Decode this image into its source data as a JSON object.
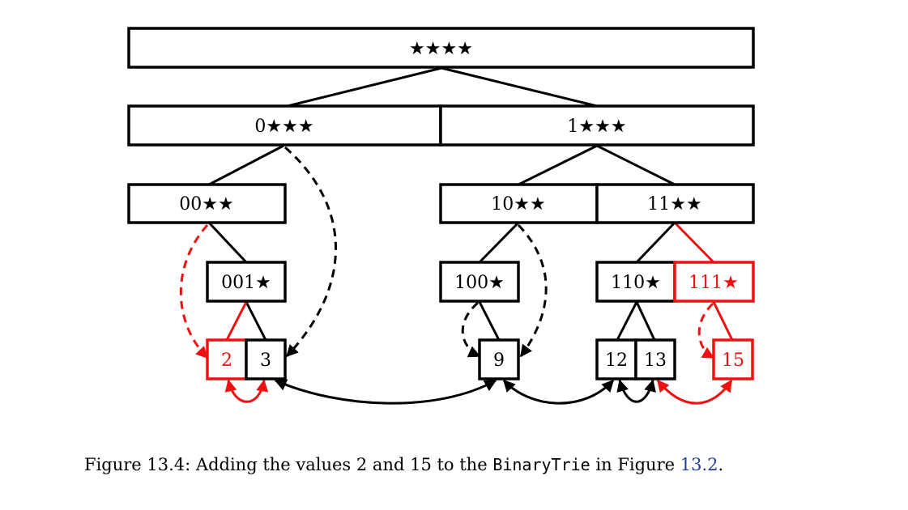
{
  "colors": {
    "black": "#000000",
    "red": "#ee1111",
    "link": "#1f3f9f"
  },
  "nodes": {
    "root": "★★★★",
    "n0": "0★★★",
    "n1": "1★★★",
    "n00": "00★★",
    "n10": "10★★",
    "n11": "11★★",
    "n001": "001★",
    "n100": "100★",
    "n110": "110★",
    "n111": "111★"
  },
  "leaves": {
    "l2": "2",
    "l3": "3",
    "l9": "9",
    "l12": "12",
    "l13": "13",
    "l15": "15"
  },
  "caption": {
    "prefix": "Figure 13.4: Adding the values 2 and 15 to the ",
    "code": "BinaryTrie",
    "middle": " in Figure ",
    "ref": "13.2",
    "suffix": "."
  }
}
